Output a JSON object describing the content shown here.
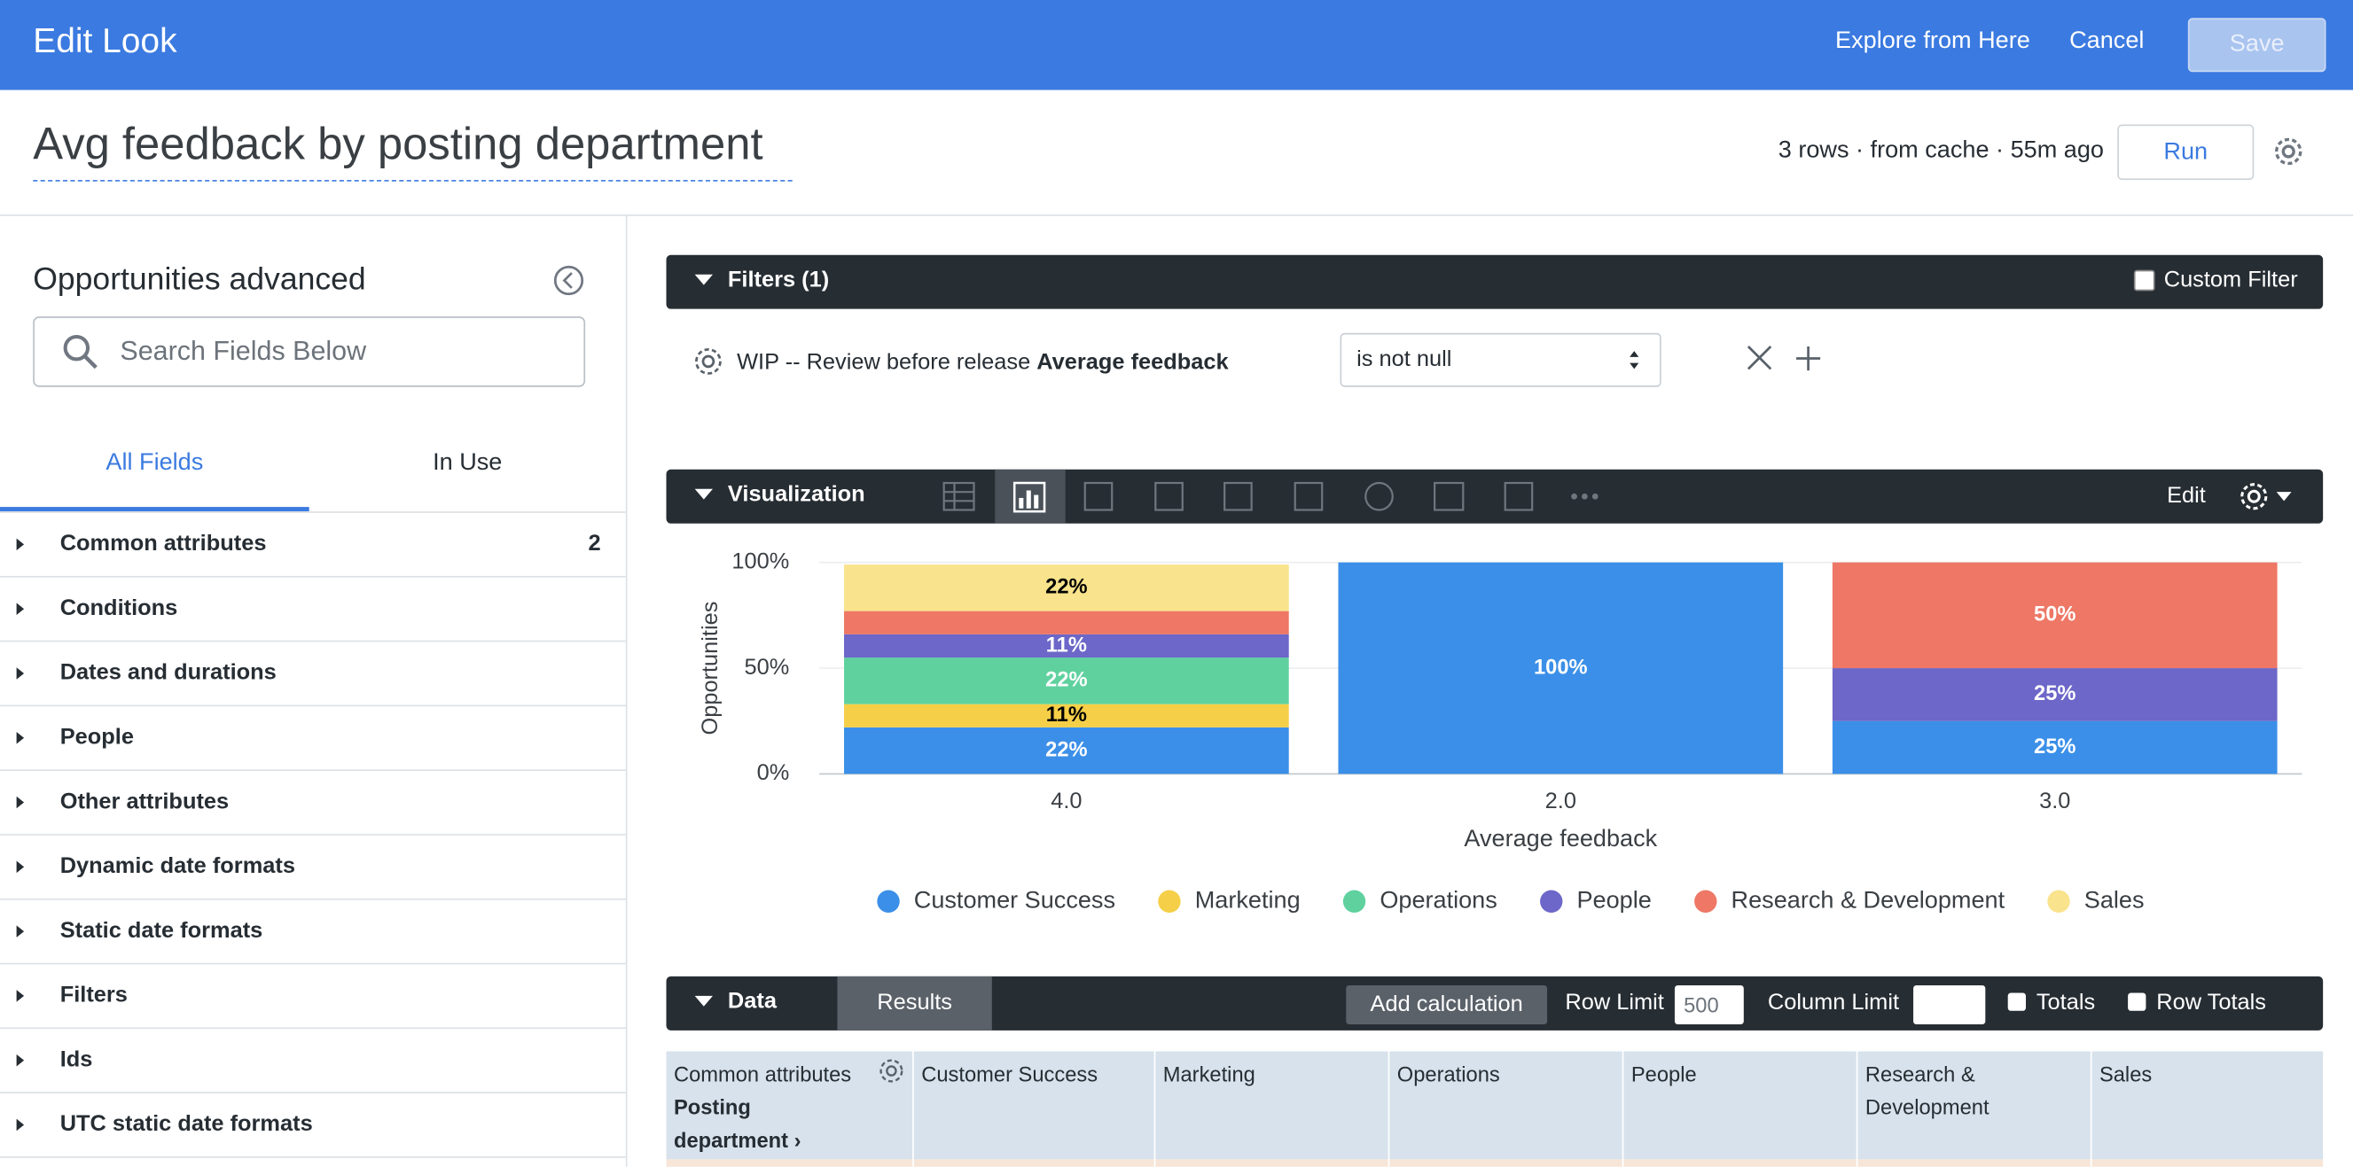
{
  "header": {
    "title": "Edit Look",
    "explore": "Explore from Here",
    "cancel": "Cancel",
    "save": "Save"
  },
  "query": {
    "title": "Avg feedback by posting department",
    "status": "3 rows · from cache · 55m ago",
    "run": "Run"
  },
  "sidebar": {
    "title": "Opportunities advanced",
    "search_placeholder": "Search Fields Below",
    "tabs": [
      "All Fields",
      "In Use"
    ],
    "fields": [
      {
        "name": "Common attributes",
        "count": 2
      },
      {
        "name": "Conditions"
      },
      {
        "name": "Dates and durations"
      },
      {
        "name": "People"
      },
      {
        "name": "Other attributes"
      },
      {
        "name": "Dynamic date formats"
      },
      {
        "name": "Static date formats"
      },
      {
        "name": "Filters"
      },
      {
        "name": "Ids"
      },
      {
        "name": "UTC static date formats"
      }
    ]
  },
  "filters": {
    "title": "Filters (1)",
    "custom": "Custom Filter",
    "field_view": "WIP -- Review before release",
    "field_name": "Average feedback",
    "operator": "is not null"
  },
  "visualization": {
    "title": "Visualization",
    "edit": "Edit"
  },
  "chart_data": {
    "type": "stacked_bar",
    "x_label": "Average feedback",
    "y_label": "Opportunities",
    "categories": [
      "4.0",
      "2.0",
      "3.0"
    ],
    "series": [
      {
        "name": "Customer Success",
        "color": "#3b8fe8",
        "values": [
          22,
          100,
          25
        ],
        "value_labels": [
          "22%",
          "100%",
          "25%"
        ]
      },
      {
        "name": "Marketing",
        "color": "#f5cf48",
        "values": [
          11,
          0,
          0
        ],
        "value_labels": [
          "11%",
          null,
          null
        ]
      },
      {
        "name": "Operations",
        "color": "#5fd19f",
        "values": [
          22,
          0,
          0
        ],
        "value_labels": [
          "22%",
          null,
          null
        ]
      },
      {
        "name": "People",
        "color": "#6c67c8",
        "values": [
          11,
          0,
          25
        ],
        "value_labels": [
          "11%",
          null,
          "25%"
        ]
      },
      {
        "name": "Research & Development",
        "color": "#ee7766",
        "values": [
          11,
          0,
          50
        ],
        "value_labels": [
          null,
          null,
          "50%"
        ]
      },
      {
        "name": "Sales",
        "color": "#f9e38c",
        "values": [
          22,
          0,
          0
        ],
        "value_labels": [
          "22%",
          null,
          null
        ]
      }
    ],
    "ylim": [
      0,
      100
    ],
    "yticks": [
      {
        "value": 0,
        "label": "0%"
      },
      {
        "value": 50,
        "label": "50%"
      },
      {
        "value": 100,
        "label": "100%"
      }
    ],
    "grid": true,
    "legend": "bottom"
  },
  "data_panel": {
    "title": "Data",
    "results": "Results",
    "add_calculation": "Add calculation",
    "row_limit_label": "Row Limit",
    "row_limit": "500",
    "column_limit_label": "Column Limit",
    "totals": "Totals",
    "row_totals": "Row Totals",
    "dimension_group": "Common attributes",
    "dimension_name": "Posting department ›",
    "columns": [
      "Customer Success",
      "Marketing",
      "Operations",
      "People",
      "Research & Development",
      "Sales"
    ]
  }
}
